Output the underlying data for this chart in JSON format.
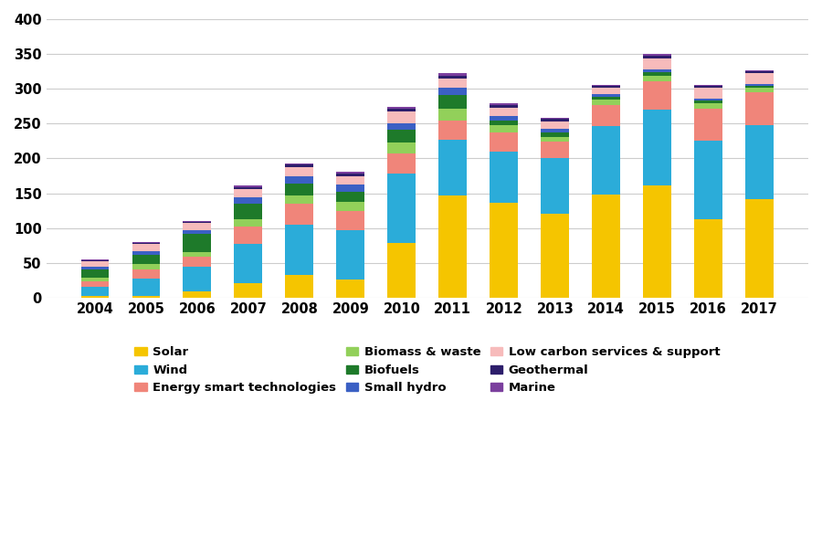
{
  "years": [
    2004,
    2005,
    2006,
    2007,
    2008,
    2009,
    2010,
    2011,
    2012,
    2013,
    2014,
    2015,
    2016,
    2017
  ],
  "series": {
    "Solar": [
      2,
      3,
      9,
      21,
      33,
      26,
      79,
      147,
      137,
      120,
      148,
      161,
      113,
      141
    ],
    "Wind": [
      14,
      24,
      36,
      57,
      72,
      71,
      100,
      80,
      73,
      80,
      99,
      109,
      112,
      107
    ],
    "Energy smart technologies": [
      7,
      14,
      14,
      24,
      30,
      27,
      28,
      28,
      28,
      24,
      30,
      41,
      47,
      47
    ],
    "Biomass & waste": [
      6,
      8,
      7,
      11,
      12,
      14,
      16,
      16,
      10,
      7,
      7,
      8,
      7,
      6
    ],
    "Biofuels": [
      11,
      13,
      26,
      22,
      17,
      14,
      18,
      20,
      6,
      6,
      4,
      5,
      4,
      3
    ],
    "Small hydro": [
      4,
      5,
      5,
      9,
      10,
      10,
      10,
      10,
      7,
      6,
      5,
      4,
      3,
      3
    ],
    "Low carbon services & support": [
      8,
      10,
      10,
      12,
      13,
      13,
      17,
      14,
      12,
      10,
      8,
      15,
      15,
      15
    ],
    "Geothermal": [
      2,
      2,
      2,
      3,
      4,
      4,
      4,
      4,
      4,
      4,
      3,
      4,
      3,
      3
    ],
    "Marine": [
      1,
      1,
      1,
      2,
      2,
      2,
      2,
      3,
      2,
      2,
      2,
      3,
      2,
      2
    ]
  },
  "colors": {
    "Solar": "#F5C500",
    "Wind": "#2BACD9",
    "Energy smart technologies": "#F0857A",
    "Biomass & waste": "#92D05A",
    "Biofuels": "#1E7A2A",
    "Small hydro": "#3B60C4",
    "Low carbon services & support": "#F7BBBB",
    "Geothermal": "#2D1E6B",
    "Marine": "#7B3F9E"
  },
  "stack_order": [
    "Solar",
    "Wind",
    "Energy smart technologies",
    "Biomass & waste",
    "Biofuels",
    "Small hydro",
    "Low carbon services & support",
    "Geothermal",
    "Marine"
  ],
  "legend_order": [
    "Solar",
    "Wind",
    "Energy smart technologies",
    "Biomass & waste",
    "Biofuels",
    "Small hydro",
    "Low carbon services & support",
    "Geothermal",
    "Marine"
  ],
  "ylim": [
    0,
    400
  ],
  "yticks": [
    0,
    50,
    100,
    150,
    200,
    250,
    300,
    350,
    400
  ],
  "background_color": "#ffffff",
  "grid_color": "#cccccc",
  "bar_width": 0.55
}
